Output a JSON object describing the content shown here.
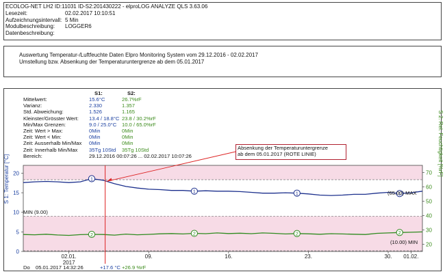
{
  "header": {
    "title_line": "ECOLOG-NET LH2  ID:11031  ID-S2:201430222  -  elproLOG ANALYZE QLS 3.63.06",
    "rows": [
      {
        "label": "Lesezeit:",
        "value": "02.02.2017  10:10:51"
      },
      {
        "label": "Aufzeichnungsintervall:",
        "value": "5 Min"
      },
      {
        "label": "Modulbeschreibung:",
        "value": "LOGGER6"
      },
      {
        "label": "Datenbeschreibung:",
        "value": ""
      }
    ]
  },
  "report": {
    "line1": "Auswertung Temperatur-/Luftfeuchte Daten Elpro Monitoring System vom 29.12.2016 - 02.02.2017",
    "line2": "Umstellung bzw. Absenkung der Temperaturuntergrenze ab dem 05.01.2017"
  },
  "stats": {
    "s1_header": "S1:",
    "s2_header": "S2:",
    "rows": [
      {
        "label": "Mittelwert:",
        "s1": "15.6°C",
        "s2": "26.7%rF"
      },
      {
        "label": "Varianz:",
        "s1": "2.330",
        "s2": "1.357"
      },
      {
        "label": "Std. Abweichung:",
        "s1": "1.526",
        "s2": "1.165"
      },
      {
        "label": "Kleinster/Grösster Wert:",
        "s1": "13.4 / 18.8°C",
        "s2": "23.8 / 30.2%rF"
      },
      {
        "label": "Min/Max Grenzen:",
        "s1": "9.0 / 25.0°C",
        "s2": "10.0 / 65.0%rF"
      },
      {
        "label": "Zeit: Wert > Max:",
        "s1": "0Min",
        "s2": "0Min"
      },
      {
        "label": "Zeit: Wert < Min:",
        "s1": "0Min",
        "s2": "0Min"
      },
      {
        "label": "Zeit: Ausserhalb Min/Max",
        "s1": "0Min",
        "s2": "0Min"
      },
      {
        "label": "Zeit: Innerhalb Min/Max",
        "s1": "35Tg 10Std",
        "s2": "35Tg 10Std"
      },
      {
        "label": "Bereich:",
        "s1": "29.12.2016    00:07:26  ...  02.02.2017   10:07:26",
        "s2": ""
      }
    ]
  },
  "annotation": {
    "line1": "Absenkung der Temperaturuntergrenze",
    "line2": "ab dem 05.01.2017 (ROTE LINIE)"
  },
  "limit_labels": {
    "s1_min": "MIN (9.00)",
    "s1_max": "(65.00)  MAX",
    "s2_min": "(10.00)  MIN"
  },
  "series_markers": {
    "s1": "1",
    "s2": "2"
  },
  "cursor": {
    "day": "Do",
    "datetime": "05.01.2017    14:32:26",
    "s1_value": "+17.6 °C",
    "s2_value": "+26.9 %rF"
  },
  "chart_data": {
    "type": "line",
    "ylabel_left": "S 1: Temperatur [°C]",
    "ylabel_right": "S 2: Rel. Feuchtigkeit [%rF]",
    "y_left_ticks": [
      "20",
      "15",
      "10",
      "5",
      "0"
    ],
    "y_left_range": [
      0,
      22
    ],
    "y_right_ticks": [
      "70",
      "60",
      "50",
      "40",
      "30",
      "20"
    ],
    "y_right_range": [
      15,
      75
    ],
    "x_ticks": [
      "02.01.",
      "09.",
      "16.",
      "23.",
      "30.",
      "01.02."
    ],
    "x_tick_sub": {
      "02.01.": "2017"
    },
    "x_range": [
      "2016-12-29",
      "2017-02-02"
    ],
    "cursor_date": "2017-01-05",
    "colors": {
      "s1": "#1b2f8c",
      "s2": "#2e8b1e",
      "cursor": "#d22",
      "band": "#f7dbe6"
    },
    "series": [
      {
        "x": [
          "2016-12-29",
          "2016-12-30",
          "2016-12-31",
          "2017-01-01",
          "2017-01-02",
          "2017-01-03",
          "2017-01-04",
          "2017-01-05",
          "2017-01-06",
          "2017-01-07",
          "2017-01-08",
          "2017-01-09",
          "2017-01-10",
          "2017-01-11",
          "2017-01-12",
          "2017-01-13",
          "2017-01-14",
          "2017-01-15",
          "2017-01-16",
          "2017-01-17",
          "2017-01-18",
          "2017-01-19",
          "2017-01-20",
          "2017-01-21",
          "2017-01-22",
          "2017-01-23",
          "2017-01-24",
          "2017-01-25",
          "2017-01-26",
          "2017-01-27",
          "2017-01-28",
          "2017-01-29",
          "2017-01-30",
          "2017-01-31",
          "2017-02-01",
          "2017-02-02"
        ],
        "values": [
          17.6,
          17.8,
          17.9,
          17.8,
          17.6,
          17.8,
          18.6,
          18.2,
          17.3,
          16.6,
          16.2,
          15.9,
          15.8,
          15.6,
          15.6,
          15.4,
          15.5,
          15.4,
          15.4,
          15.3,
          15.1,
          14.9,
          14.9,
          15.0,
          14.9,
          14.7,
          14.4,
          14.3,
          14.4,
          14.6,
          14.6,
          14.9,
          15.1,
          14.8,
          15.0,
          15.4
        ]
      },
      {
        "x": [
          "2016-12-29",
          "2016-12-30",
          "2016-12-31",
          "2017-01-01",
          "2017-01-02",
          "2017-01-03",
          "2017-01-04",
          "2017-01-05",
          "2017-01-06",
          "2017-01-07",
          "2017-01-08",
          "2017-01-09",
          "2017-01-10",
          "2017-01-11",
          "2017-01-12",
          "2017-01-13",
          "2017-01-14",
          "2017-01-15",
          "2017-01-16",
          "2017-01-17",
          "2017-01-18",
          "2017-01-19",
          "2017-01-20",
          "2017-01-21",
          "2017-01-22",
          "2017-01-23",
          "2017-01-24",
          "2017-01-25",
          "2017-01-26",
          "2017-01-27",
          "2017-01-28",
          "2017-01-29",
          "2017-01-30",
          "2017-01-31",
          "2017-02-01",
          "2017-02-02"
        ],
        "values": [
          26.8,
          26.6,
          27.0,
          26.5,
          26.2,
          26.7,
          26.9,
          26.8,
          26.4,
          27.1,
          26.6,
          26.9,
          27.3,
          27.5,
          27.2,
          27.6,
          27.4,
          27.9,
          27.5,
          27.7,
          27.4,
          27.9,
          27.6,
          27.2,
          27.5,
          27.3,
          27.0,
          27.4,
          27.2,
          27.0,
          26.8,
          27.6,
          27.9,
          28.2,
          28.4,
          28.6
        ]
      }
    ]
  }
}
